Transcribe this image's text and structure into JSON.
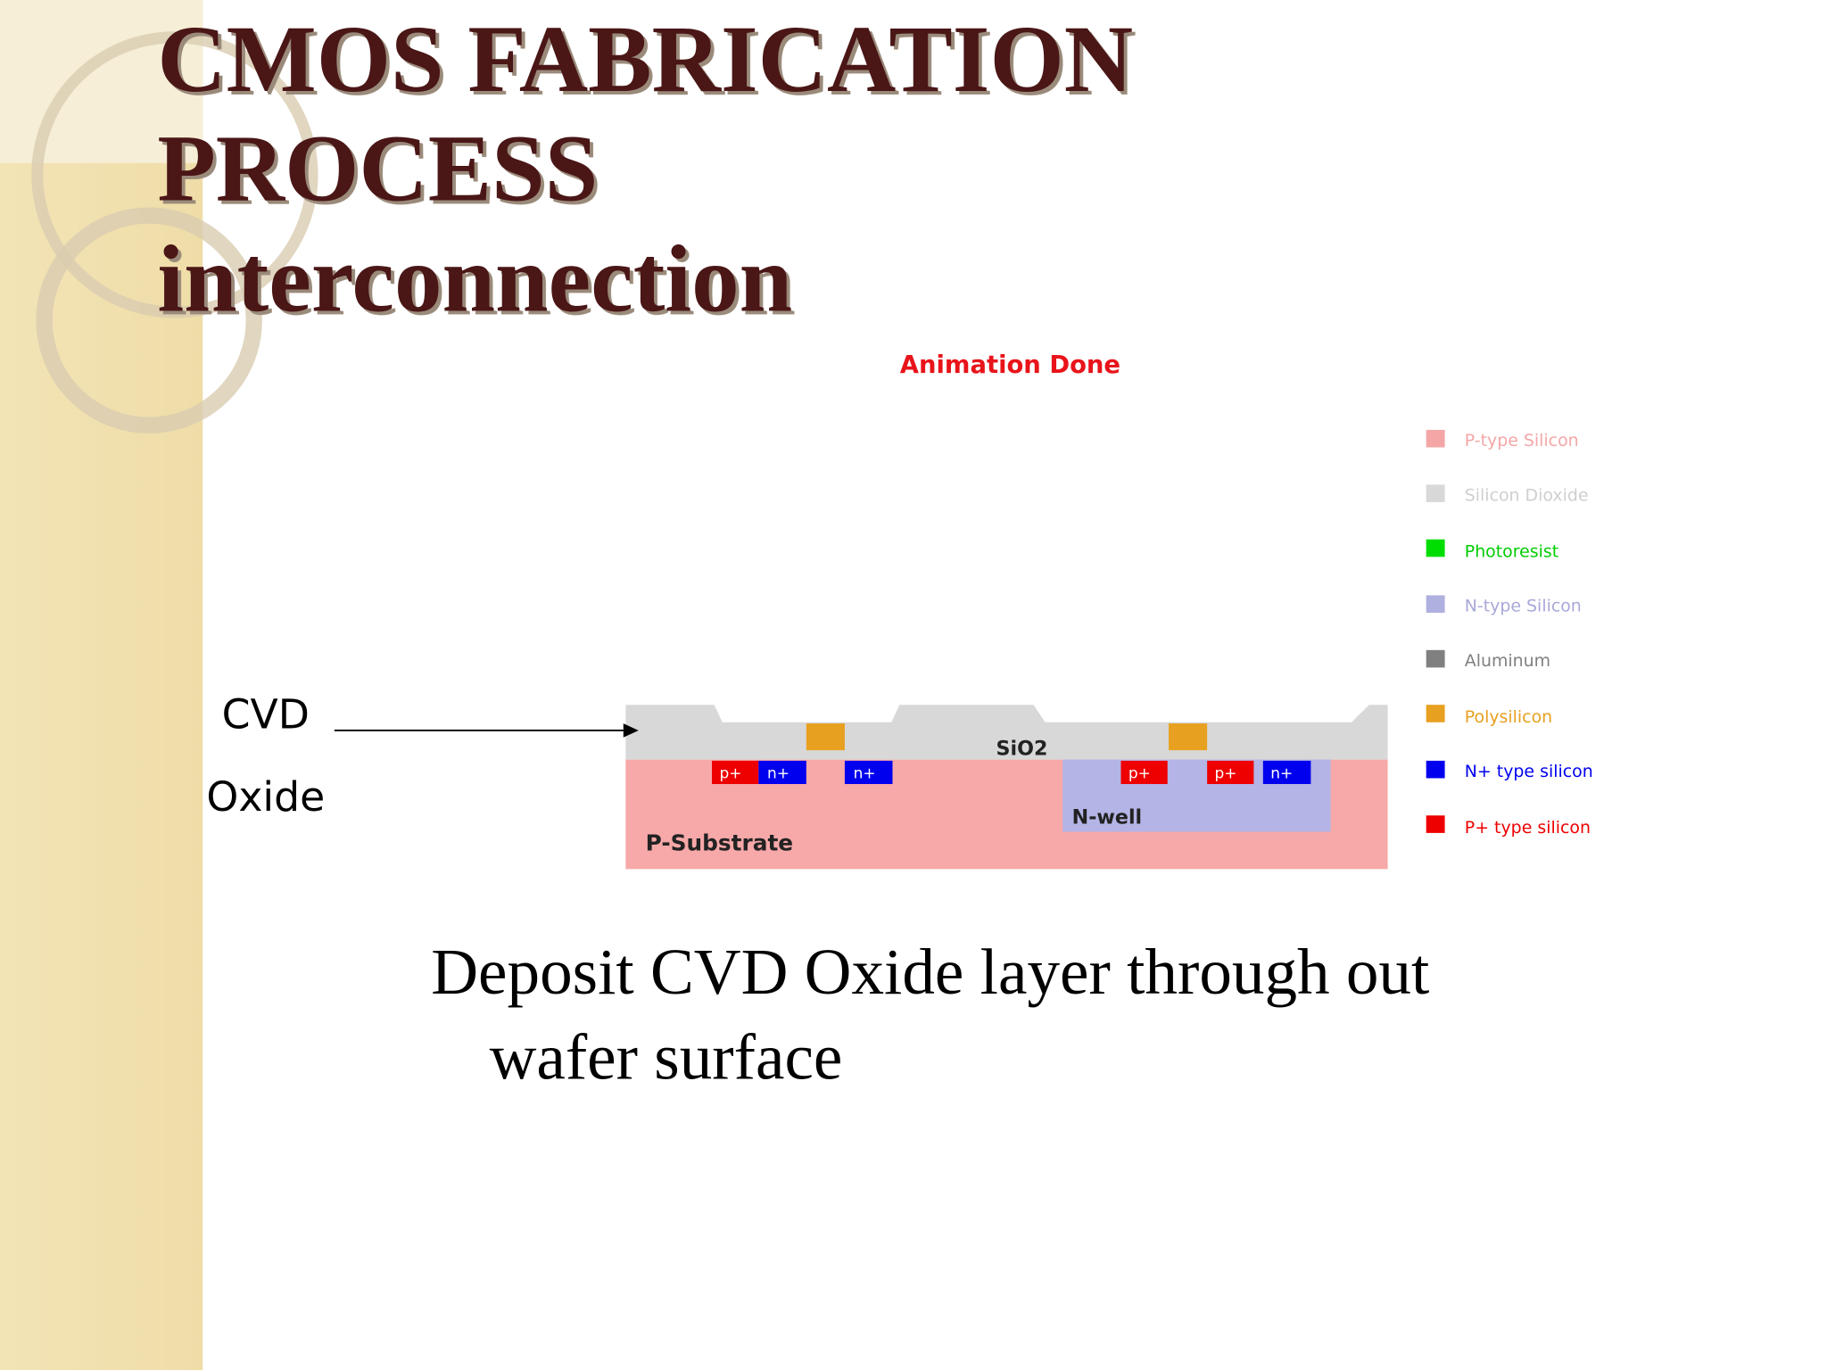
{
  "header": {
    "title_lines": [
      "CMOS FABRICATION",
      "PROCESS",
      "interconnection"
    ]
  },
  "animation_status": "Animation Done",
  "annotation": {
    "lines": [
      "CVD",
      "Oxide"
    ]
  },
  "diagram": {
    "labels": {
      "oxide": "SiO2",
      "well": "N-well",
      "substrate": "P-Substrate"
    },
    "regions": [
      "p+",
      "n+",
      "n+",
      "p+",
      "p+",
      "n+"
    ]
  },
  "legend": [
    "P-type Silicon",
    "Silicon Dioxide",
    "Photoresist",
    "N-type Silicon",
    "Aluminum",
    "Polysilicon",
    "N+ type silicon",
    "P+ type silicon"
  ],
  "body": {
    "lines": [
      "Deposit CVD Oxide layer through out",
      "wafer surface"
    ]
  }
}
